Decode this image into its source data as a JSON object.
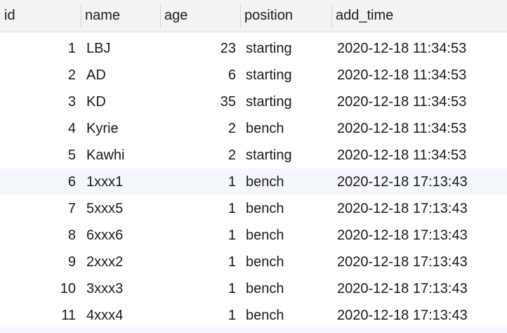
{
  "columns": [
    "id",
    "name",
    "age",
    "position",
    "add_time"
  ],
  "rows": [
    {
      "id": "1",
      "name": "LBJ",
      "age": "23",
      "position": "starting",
      "add_time": "2020-12-18 11:34:53"
    },
    {
      "id": "2",
      "name": "AD",
      "age": "6",
      "position": "starting",
      "add_time": "2020-12-18 11:34:53"
    },
    {
      "id": "3",
      "name": "KD",
      "age": "35",
      "position": "starting",
      "add_time": "2020-12-18 11:34:53"
    },
    {
      "id": "4",
      "name": "Kyrie",
      "age": "2",
      "position": "bench",
      "add_time": "2020-12-18 11:34:53"
    },
    {
      "id": "5",
      "name": "Kawhi",
      "age": "2",
      "position": "starting",
      "add_time": "2020-12-18 11:34:53"
    },
    {
      "id": "6",
      "name": "1xxx1",
      "age": "1",
      "position": "bench",
      "add_time": "2020-12-18 17:13:43"
    },
    {
      "id": "7",
      "name": "5xxx5",
      "age": "1",
      "position": "bench",
      "add_time": "2020-12-18 17:13:43"
    },
    {
      "id": "8",
      "name": "6xxx6",
      "age": "1",
      "position": "bench",
      "add_time": "2020-12-18 17:13:43"
    },
    {
      "id": "9",
      "name": "2xxx2",
      "age": "1",
      "position": "bench",
      "add_time": "2020-12-18 17:13:43"
    },
    {
      "id": "10",
      "name": "3xxx3",
      "age": "1",
      "position": "bench",
      "add_time": "2020-12-18 17:13:43"
    },
    {
      "id": "11",
      "name": "4xxx4",
      "age": "1",
      "position": "bench",
      "add_time": "2020-12-18 17:13:43"
    }
  ],
  "colors": {
    "header_bg": "#f3f3f3",
    "row_alt_bg": "#f4f8fd",
    "row_bg": "#ffffff",
    "text": "#1a1a1a"
  }
}
